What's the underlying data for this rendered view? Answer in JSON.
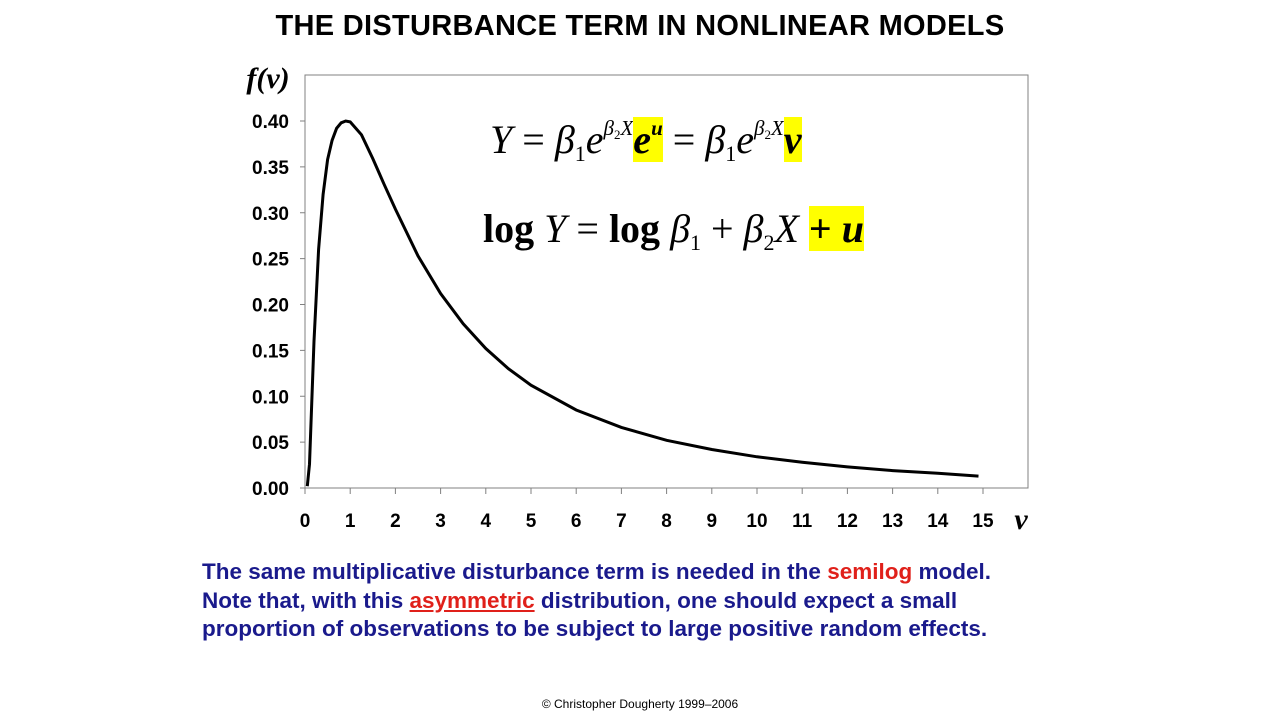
{
  "title": "THE DISTURBANCE TERM IN NONLINEAR MODELS",
  "chart_data": {
    "type": "line",
    "ylabel": "f(v)",
    "xlabel": "v",
    "xlim": [
      0,
      15
    ],
    "ylim": [
      0,
      0.45
    ],
    "xticks": [
      "0",
      "1",
      "2",
      "3",
      "4",
      "5",
      "6",
      "7",
      "8",
      "9",
      "10",
      "11",
      "12",
      "13",
      "14",
      "15"
    ],
    "yticks": [
      "0.00",
      "0.05",
      "0.10",
      "0.15",
      "0.20",
      "0.25",
      "0.30",
      "0.35",
      "0.40"
    ],
    "grid": false,
    "series": [
      {
        "x": [
          0.05,
          0.1,
          0.2,
          0.3,
          0.4,
          0.5,
          0.6,
          0.7,
          0.8,
          0.9,
          1.0,
          1.25,
          1.5,
          1.75,
          2,
          2.5,
          3,
          3.5,
          4,
          4.5,
          5,
          6,
          7,
          8,
          9,
          10,
          11,
          12,
          13,
          14,
          14.9
        ],
        "values": [
          0.002,
          0.026,
          0.16,
          0.26,
          0.32,
          0.358,
          0.379,
          0.392,
          0.398,
          0.4,
          0.399,
          0.385,
          0.359,
          0.331,
          0.304,
          0.253,
          0.212,
          0.179,
          0.152,
          0.13,
          0.112,
          0.085,
          0.066,
          0.052,
          0.042,
          0.034,
          0.028,
          0.023,
          0.019,
          0.016,
          0.013
        ]
      }
    ]
  },
  "equation1": {
    "lhs": "Y",
    "eq": "=",
    "beta": "β",
    "sub1": "1",
    "e": "e",
    "beta2": "β",
    "sub2": "2",
    "X": "X",
    "u": "u",
    "v": "v"
  },
  "equation2": {
    "log": "log",
    "Y": "Y",
    "eq": "=",
    "log2": "log",
    "beta": "β",
    "sub1": "1",
    "plus": "+",
    "beta2": "β",
    "sub2": "2",
    "X": "X",
    "plus_u": "+",
    "u": "u"
  },
  "body": {
    "l1a": "The same multiplicative disturbance term is needed in the ",
    "l1b": "semilog",
    "l1c": " model.",
    "l2a": "Note that, with this ",
    "l2b": "asymmetric",
    "l2c": " distribution, one should expect a small",
    "l3": "proportion of observations to be subject to large positive random effects."
  },
  "copyright": "© Christopher Dougherty 1999–2006"
}
